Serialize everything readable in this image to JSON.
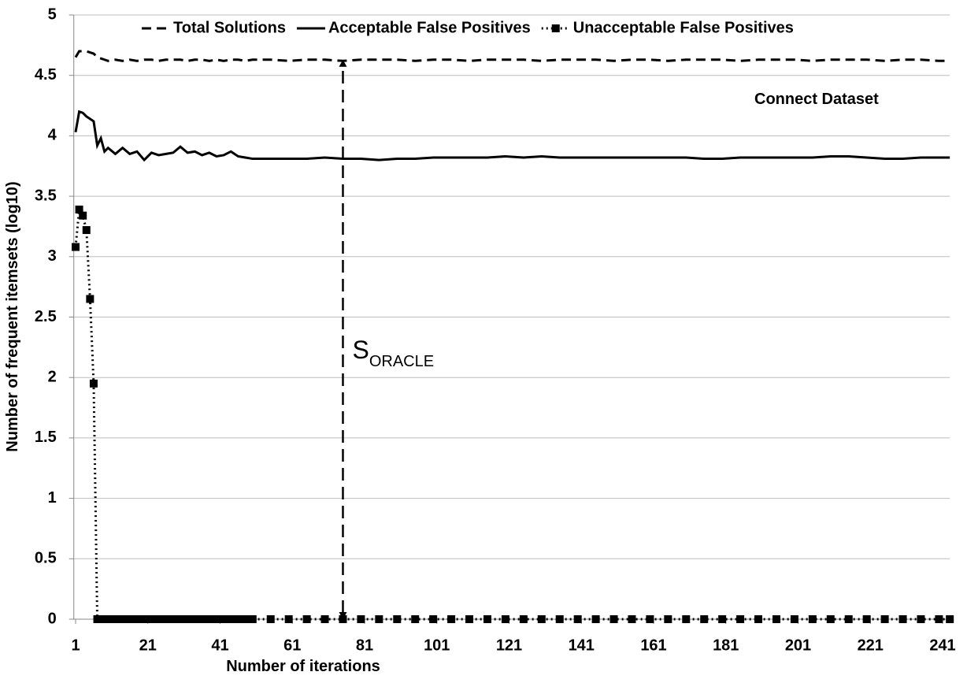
{
  "chart_data": {
    "type": "line",
    "x_label": "Number of iterations",
    "y_label": "Number of frequent itemsets (log10)",
    "x": [
      1,
      2,
      3,
      4,
      5,
      6,
      7,
      8,
      9,
      10,
      12,
      14,
      16,
      18,
      20,
      22,
      24,
      26,
      28,
      30,
      32,
      34,
      36,
      38,
      40,
      42,
      44,
      46,
      48,
      50,
      55,
      60,
      65,
      70,
      75,
      80,
      85,
      90,
      95,
      100,
      105,
      110,
      115,
      120,
      125,
      130,
      135,
      140,
      145,
      150,
      155,
      160,
      165,
      170,
      175,
      180,
      185,
      190,
      195,
      200,
      205,
      210,
      215,
      220,
      225,
      230,
      235,
      240,
      243
    ],
    "series": [
      {
        "name": "Total Solutions",
        "color": "#000000",
        "style": "dashed",
        "values": [
          4.65,
          4.7,
          4.7,
          4.7,
          4.69,
          4.68,
          4.65,
          4.64,
          4.63,
          4.62,
          4.63,
          4.62,
          4.63,
          4.62,
          4.63,
          4.63,
          4.62,
          4.63,
          4.63,
          4.63,
          4.62,
          4.63,
          4.63,
          4.62,
          4.63,
          4.62,
          4.63,
          4.63,
          4.62,
          4.63,
          4.63,
          4.62,
          4.63,
          4.63,
          4.62,
          4.63,
          4.63,
          4.63,
          4.62,
          4.63,
          4.63,
          4.62,
          4.63,
          4.63,
          4.63,
          4.62,
          4.63,
          4.63,
          4.63,
          4.62,
          4.63,
          4.63,
          4.62,
          4.63,
          4.63,
          4.63,
          4.62,
          4.63,
          4.63,
          4.63,
          4.62,
          4.63,
          4.63,
          4.63,
          4.62,
          4.63,
          4.63,
          4.62,
          4.62
        ]
      },
      {
        "name": "Acceptable False Positives",
        "color": "#000000",
        "style": "solid",
        "values": [
          4.03,
          4.2,
          4.19,
          4.16,
          4.14,
          4.12,
          3.92,
          3.98,
          3.87,
          3.9,
          3.85,
          3.9,
          3.85,
          3.87,
          3.8,
          3.86,
          3.84,
          3.85,
          3.86,
          3.91,
          3.86,
          3.87,
          3.84,
          3.86,
          3.83,
          3.84,
          3.87,
          3.83,
          3.82,
          3.81,
          3.81,
          3.81,
          3.81,
          3.82,
          3.81,
          3.81,
          3.8,
          3.81,
          3.81,
          3.82,
          3.82,
          3.82,
          3.82,
          3.83,
          3.82,
          3.83,
          3.82,
          3.82,
          3.82,
          3.82,
          3.82,
          3.82,
          3.82,
          3.82,
          3.81,
          3.81,
          3.82,
          3.82,
          3.82,
          3.82,
          3.82,
          3.83,
          3.83,
          3.82,
          3.81,
          3.81,
          3.82,
          3.82,
          3.82
        ]
      },
      {
        "name": "Unacceptable False Positives",
        "color": "#000000",
        "style": "dotted",
        "marker": "square",
        "values": [
          3.08,
          3.39,
          3.34,
          3.22,
          2.65,
          1.95,
          0,
          0,
          0,
          0,
          0,
          0,
          0,
          0,
          0,
          0,
          0,
          0,
          0,
          0,
          0,
          0,
          0,
          0,
          0,
          0,
          0,
          0,
          0,
          0,
          0,
          0,
          0,
          0,
          0,
          0,
          0,
          0,
          0,
          0,
          0,
          0,
          0,
          0,
          0,
          0,
          0,
          0,
          0,
          0,
          0,
          0,
          0,
          0,
          0,
          0,
          0,
          0,
          0,
          0,
          0,
          0,
          0,
          0,
          0,
          0,
          0,
          0,
          0
        ]
      }
    ],
    "xlim": [
      0.5,
      243
    ],
    "ylim": [
      0,
      5
    ],
    "xticks": [
      1,
      21,
      41,
      61,
      81,
      101,
      121,
      141,
      161,
      181,
      201,
      221,
      241
    ],
    "yticks": [
      0,
      0.5,
      1,
      1.5,
      2,
      2.5,
      3,
      3.5,
      4,
      4.5,
      5
    ],
    "grid": true,
    "legend": "top",
    "annotation": "Connect Dataset",
    "oracle": {
      "x": 75,
      "y_range": [
        0,
        4.63
      ],
      "label": "S",
      "label_sub": "ORACLE"
    }
  }
}
